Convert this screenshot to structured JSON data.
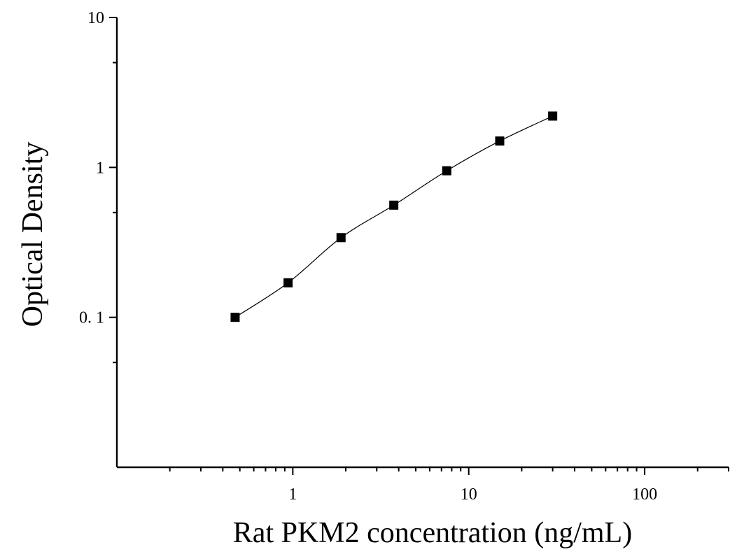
{
  "chart_data": {
    "type": "scatter",
    "xlabel": "Rat PKM2 concentration (ng/mL)",
    "ylabel": "Optical Density",
    "x_scale": "log",
    "y_scale": "log",
    "xlim": [
      0.1,
      300
    ],
    "ylim": [
      0.01,
      10
    ],
    "x_tick_labels": [
      "1",
      "10",
      "100"
    ],
    "y_tick_labels": [
      "0. 1",
      "1",
      "10"
    ],
    "grid": false,
    "marker": "square",
    "marker_color": "#000000",
    "line_color": "#000000",
    "series": [
      {
        "x": [
          0.47,
          0.94,
          1.88,
          3.75,
          7.5,
          15,
          30
        ],
        "y": [
          0.1,
          0.17,
          0.34,
          0.56,
          0.95,
          1.5,
          2.2
        ]
      }
    ]
  }
}
